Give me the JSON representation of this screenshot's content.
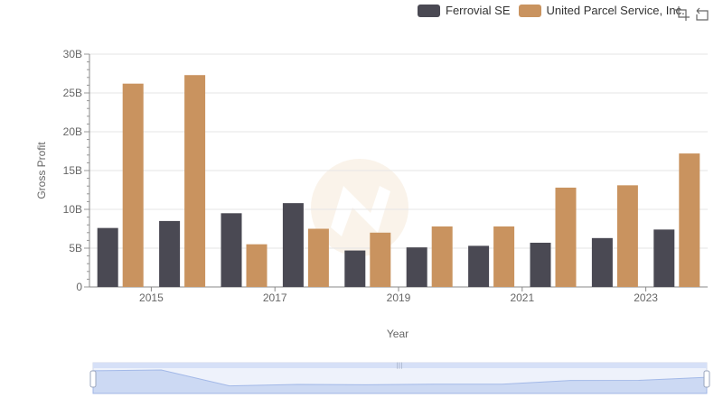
{
  "legend": {
    "series": [
      {
        "name": "Ferrovial SE",
        "color": "#4a4953"
      },
      {
        "name": "United Parcel Service, Inc.",
        "color": "#c9935f"
      }
    ]
  },
  "toolbox": {
    "zoom_icon": "zoom-icon",
    "reset_icon": "restore-icon"
  },
  "chart_data": {
    "type": "bar",
    "categories": [
      "2014",
      "2015",
      "2016",
      "2017",
      "2018",
      "2019",
      "2020",
      "2021",
      "2022",
      "2023"
    ],
    "x_tick_labels": [
      "2015",
      "2017",
      "2019",
      "2021",
      "2023"
    ],
    "series": [
      {
        "name": "Ferrovial SE",
        "color": "#4a4953",
        "values": [
          7.6,
          8.5,
          9.5,
          10.8,
          4.7,
          5.1,
          5.3,
          5.7,
          6.3,
          7.4
        ]
      },
      {
        "name": "United Parcel Service, Inc.",
        "color": "#c9935f",
        "values": [
          26.2,
          27.3,
          5.5,
          7.5,
          7.0,
          7.8,
          7.8,
          12.8,
          13.1,
          17.2
        ]
      }
    ],
    "xlabel": "Year",
    "ylabel": "Gross Profit",
    "ylim": [
      0,
      30
    ],
    "y_ticks": [
      "0",
      "5B",
      "10B",
      "15B",
      "20B",
      "25B",
      "30B"
    ],
    "grid": true,
    "legend_position": "top-right",
    "data_zoom": true
  }
}
